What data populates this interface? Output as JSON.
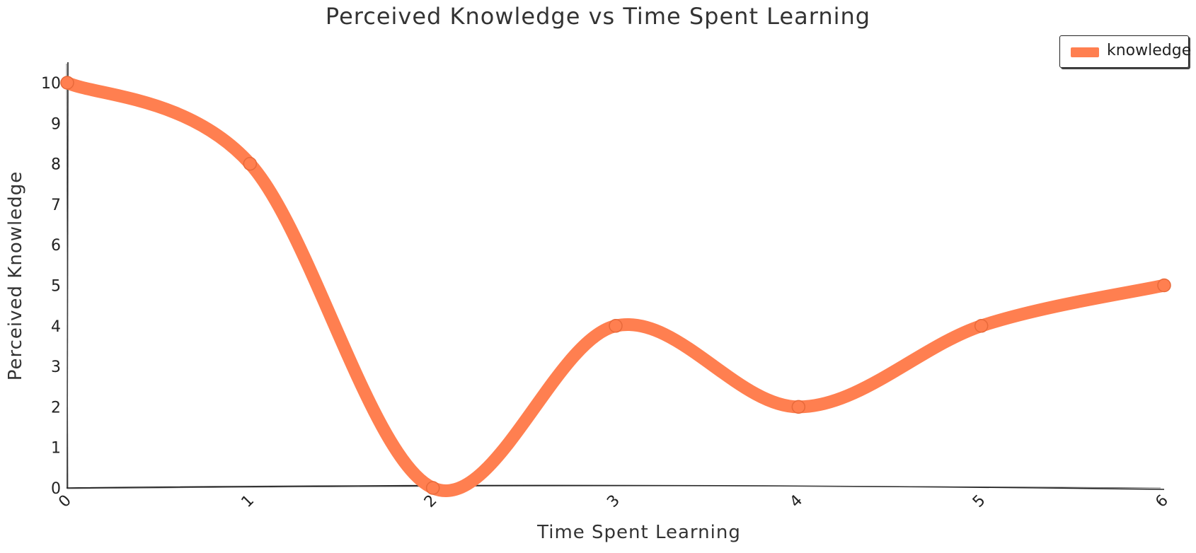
{
  "chart_data": {
    "type": "line",
    "title": "Perceived Knowledge vs Time Spent Learning",
    "xlabel": "Time Spent Learning",
    "ylabel": "Perceived Knowledge",
    "x": [
      0,
      1,
      2,
      3,
      4,
      5,
      6
    ],
    "x_ticks": [
      "0",
      "1",
      "2",
      "3",
      "4",
      "5",
      "6"
    ],
    "y_ticks": [
      "0",
      "1",
      "2",
      "3",
      "4",
      "5",
      "6",
      "7",
      "8",
      "9",
      "10"
    ],
    "xlim": [
      0,
      6
    ],
    "ylim": [
      0,
      10
    ],
    "series": [
      {
        "name": "knowledge",
        "values": [
          10,
          8,
          0,
          4,
          2,
          4,
          5
        ],
        "color": "#ff7f50"
      }
    ],
    "legend_position": "top-right",
    "grid": false
  }
}
